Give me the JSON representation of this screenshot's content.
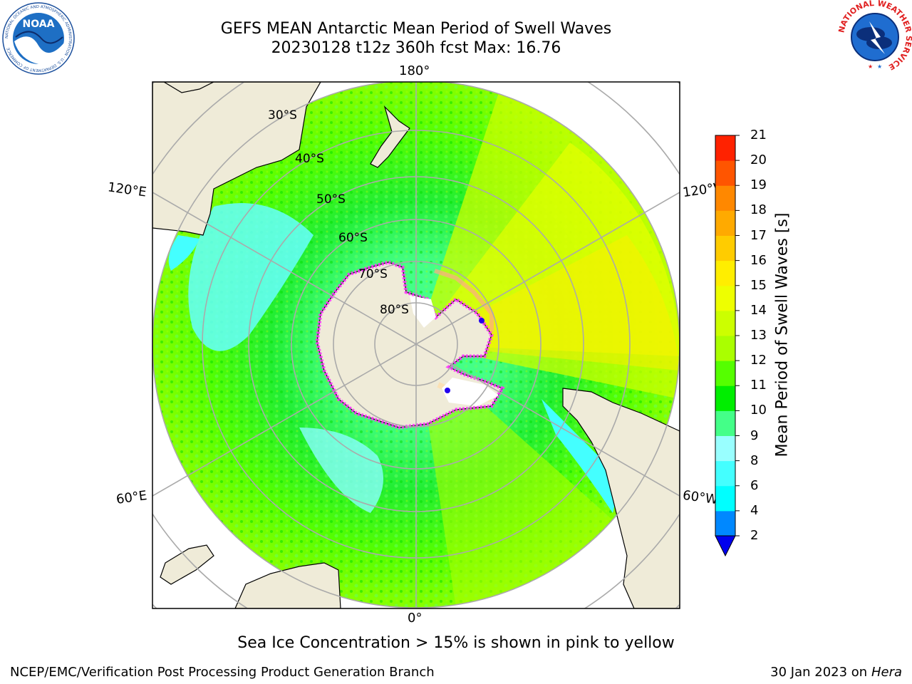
{
  "header": {
    "title": "GEFS MEAN Antarctic Mean Period of Swell Waves",
    "subtitle": "20230128 t12z 360h fcst   Max: 16.76"
  },
  "map": {
    "projection": "south-polar-stereographic",
    "lon_labels": {
      "top": "180°",
      "bottom": "0°",
      "left_upper": "120°E",
      "left_lower": "60°E",
      "right_upper": "120°W",
      "right_lower": "60°W"
    },
    "lat_labels": [
      "30°S",
      "40°S",
      "50°S",
      "60°S",
      "70°S",
      "80°S"
    ],
    "land_color": "#efebd8",
    "ocean_outside_color": "#ffffff"
  },
  "colorbar": {
    "label": "Mean Period of Swell Waves [s]",
    "ticks": [
      "2",
      "4",
      "6",
      "8",
      "9",
      "10",
      "11",
      "12",
      "13",
      "14",
      "15",
      "16",
      "17",
      "18",
      "19",
      "20",
      "21"
    ],
    "colors": [
      "#0033ff",
      "#0088ff",
      "#00ffff",
      "#44ffff",
      "#99ffff",
      "#44ff88",
      "#00ee00",
      "#55ff00",
      "#aaff00",
      "#ccff00",
      "#eeff00",
      "#ffee00",
      "#ffcc00",
      "#ffaa00",
      "#ff8800",
      "#ff5500",
      "#ff2200"
    ],
    "extend_color": "#0000ee"
  },
  "footer": {
    "note": "Sea Ice Concentration > 15% is shown in pink to yellow",
    "credit": "NCEP/EMC/Verification Post Processing Product Generation Branch",
    "date": "30 Jan 2023 on",
    "machine": "Hera"
  },
  "logos": {
    "noaa": {
      "text": "NOAA",
      "ring_text": "NATIONAL OCEANIC AND ATMOSPHERIC ADMINISTRATION · U.S. DEPARTMENT OF COMMERCE"
    },
    "nws": {
      "ring_text": "NATIONAL WEATHER SERVICE"
    }
  }
}
